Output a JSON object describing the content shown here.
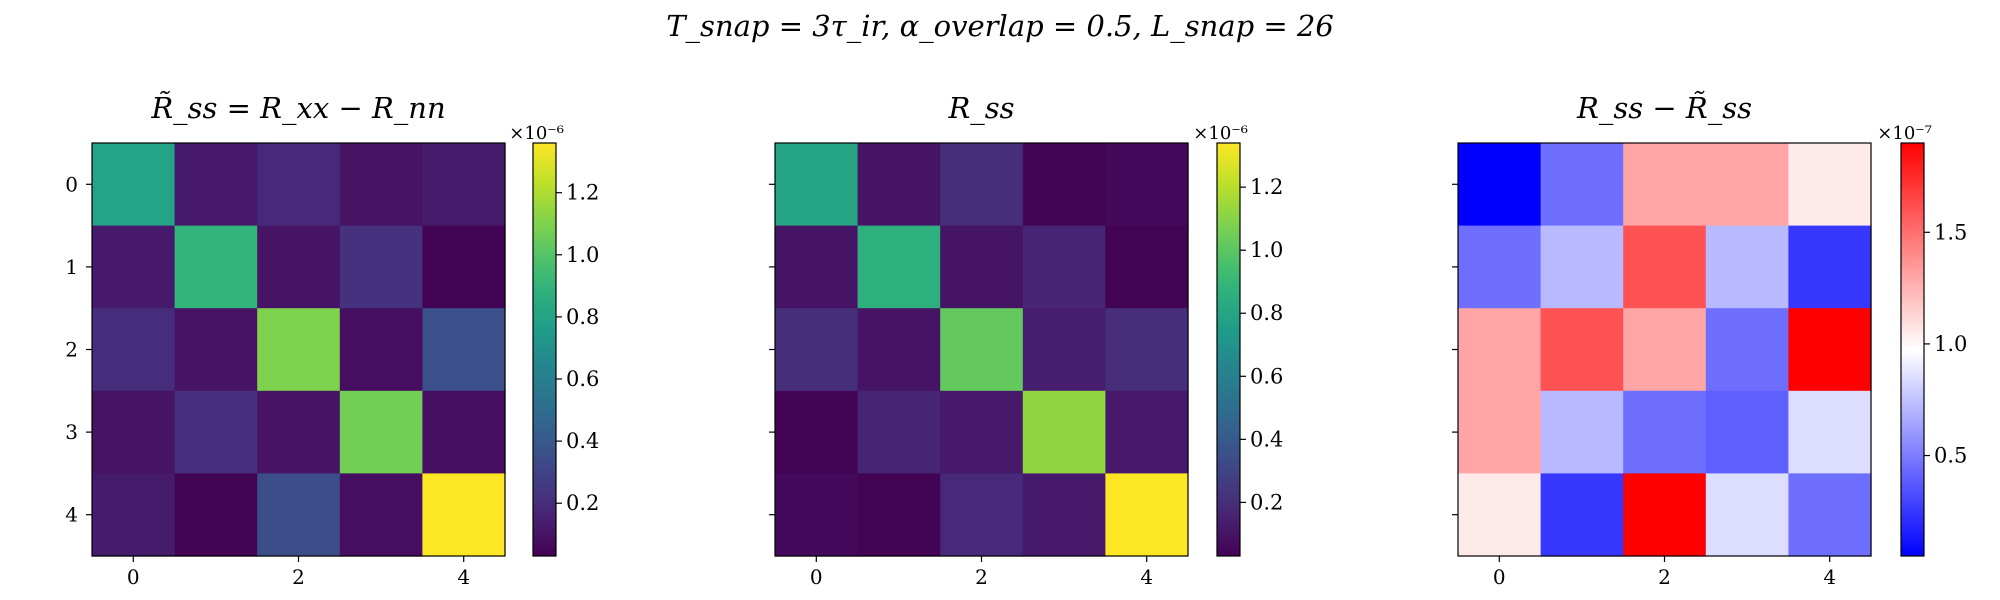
{
  "suptitle": "T_snap = 3τ_ir,   α_overlap = 0.5,   L_snap = 26",
  "chart_data": [
    {
      "type": "heatmap",
      "title": "R̃_ss = R_xx − R_nn",
      "colormap": "viridis",
      "vmin": 0.03,
      "vmax": 1.36,
      "multiplier": "×10⁻⁶",
      "xticks": [
        0,
        2,
        4
      ],
      "yticks": [
        0,
        1,
        2,
        3,
        4
      ],
      "xtick_labels": [
        "0",
        "2",
        "4"
      ],
      "ytick_labels": [
        "0",
        "1",
        "2",
        "3",
        "4"
      ],
      "show_yticklabels": true,
      "colorbar_ticks": [
        0.2,
        0.4,
        0.6,
        0.8,
        1.0,
        1.2
      ],
      "colorbar_tick_labels": [
        "0.2",
        "0.4",
        "0.6",
        "0.8",
        "1.0",
        "1.2"
      ],
      "values": [
        [
          0.8,
          0.12,
          0.18,
          0.1,
          0.13
        ],
        [
          0.12,
          0.9,
          0.1,
          0.22,
          0.04
        ],
        [
          0.2,
          0.1,
          1.1,
          0.08,
          0.36
        ],
        [
          0.1,
          0.21,
          0.1,
          1.07,
          0.08
        ],
        [
          0.13,
          0.04,
          0.35,
          0.08,
          1.36
        ]
      ]
    },
    {
      "type": "heatmap",
      "title": "R_ss",
      "colormap": "viridis",
      "vmin": 0.03,
      "vmax": 1.34,
      "multiplier": "×10⁻⁶",
      "xticks": [
        0,
        2,
        4
      ],
      "yticks": [
        0,
        1,
        2,
        3,
        4
      ],
      "xtick_labels": [
        "0",
        "2",
        "4"
      ],
      "ytick_labels": [
        "0",
        "1",
        "2",
        "3",
        "4"
      ],
      "show_yticklabels": false,
      "colorbar_ticks": [
        0.2,
        0.4,
        0.6,
        0.8,
        1.0,
        1.2
      ],
      "colorbar_tick_labels": [
        "0.2",
        "0.4",
        "0.6",
        "0.8",
        "1.0",
        "1.2"
      ],
      "values": [
        [
          0.8,
          0.1,
          0.2,
          0.04,
          0.06
        ],
        [
          0.1,
          0.86,
          0.1,
          0.16,
          0.04
        ],
        [
          0.2,
          0.1,
          1.02,
          0.14,
          0.2
        ],
        [
          0.04,
          0.16,
          0.12,
          1.12,
          0.12
        ],
        [
          0.06,
          0.04,
          0.18,
          0.12,
          1.34
        ]
      ]
    },
    {
      "type": "heatmap",
      "title": "R_ss − R̃_ss",
      "colormap": "bwr",
      "vmin": 0.05,
      "vmax": 1.9,
      "multiplier": "×10⁻⁷",
      "xticks": [
        0,
        2,
        4
      ],
      "yticks": [
        0,
        1,
        2,
        3,
        4
      ],
      "xtick_labels": [
        "0",
        "2",
        "4"
      ],
      "ytick_labels": [
        "0",
        "1",
        "2",
        "3",
        "4"
      ],
      "show_yticklabels": false,
      "colorbar_ticks": [
        0.5,
        1.0,
        1.5
      ],
      "colorbar_tick_labels": [
        "0.5",
        "1.0",
        "1.5"
      ],
      "values": [
        [
          0.05,
          0.45,
          1.3,
          1.3,
          1.05
        ],
        [
          0.45,
          0.72,
          1.6,
          0.72,
          0.25
        ],
        [
          1.3,
          1.6,
          1.3,
          0.45,
          1.9
        ],
        [
          1.3,
          0.72,
          0.45,
          0.4,
          0.85
        ],
        [
          1.05,
          0.25,
          1.9,
          0.85,
          0.45
        ]
      ]
    }
  ]
}
